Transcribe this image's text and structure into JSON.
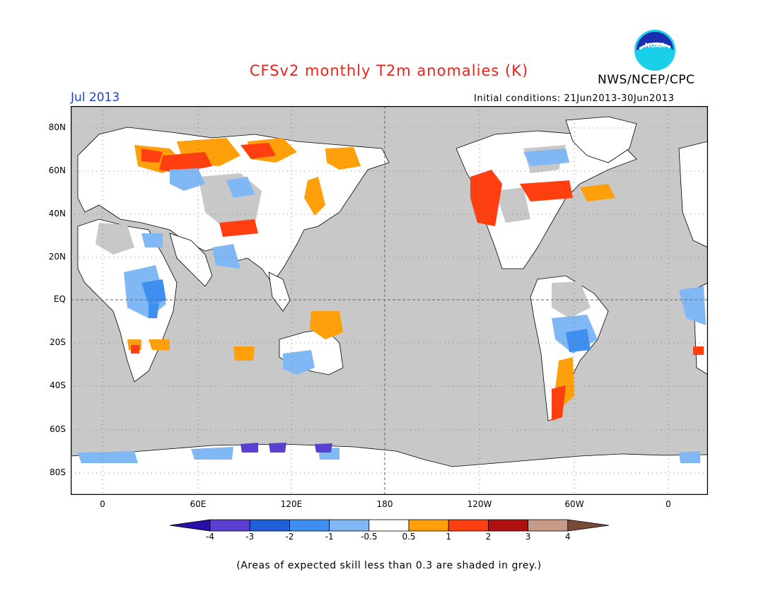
{
  "title": "CFSv2 monthly T2m anomalies (K)",
  "agency": "NWS/NCEP/CPC",
  "logo_text": "NOAA",
  "month": "Jul 2013",
  "initial_conditions": "Initial conditions: 21Jun2013-30Jun2013",
  "note": "(Areas of expected skill less than 0.3 are shaded in grey.)",
  "lat_labels": [
    "80N",
    "60N",
    "40N",
    "20N",
    "EQ",
    "20S",
    "40S",
    "60S",
    "80S"
  ],
  "lon_labels": [
    "0",
    "60E",
    "120E",
    "180",
    "120W",
    "60W",
    "0"
  ],
  "colorbar": {
    "labels": [
      "-4",
      "-3",
      "-2",
      "-1",
      "-0.5",
      "0.5",
      "1",
      "2",
      "3",
      "4"
    ],
    "colors": [
      "#2a0fa8",
      "#5a3fd0",
      "#1f5fd8",
      "#3f8ff0",
      "#7fb8f4",
      "#ffffff",
      "#ff9f0a",
      "#ff3f10",
      "#b01010",
      "#c89a88",
      "#7a4a3a"
    ]
  },
  "map_colors": {
    "ocean": "#c8c8c8",
    "land_white": "#ffffff",
    "grey": "#c8c8c8",
    "orange": "#ff9f0a",
    "red": "#ff3f10",
    "lightblue": "#7fb8f4",
    "blue": "#3f8ff0",
    "darkblue": "#1f5fd8",
    "indigo": "#5a3fd0"
  }
}
